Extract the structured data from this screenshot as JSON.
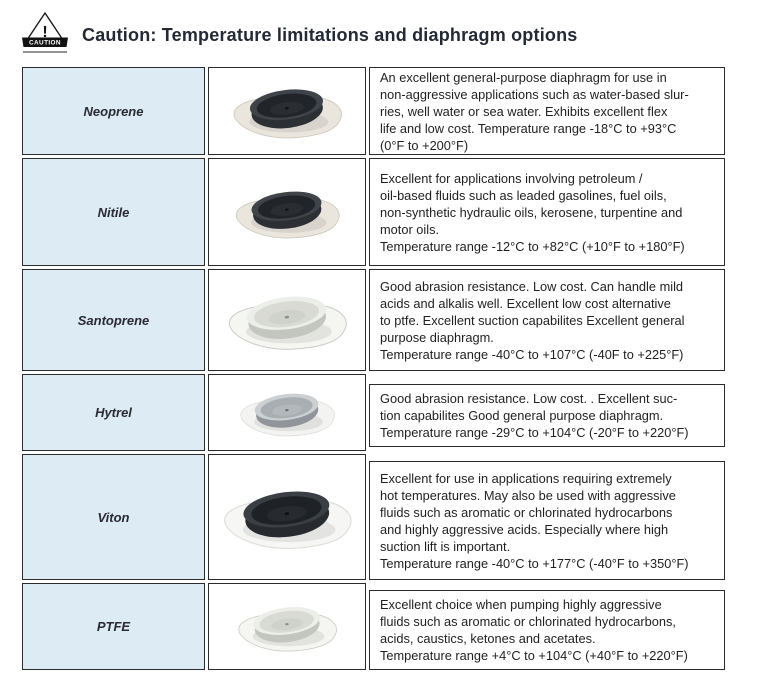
{
  "header": {
    "title": "Caution: Temperature limitations and diaphragm options",
    "caution_icon": {
      "exclamation": "!",
      "label": "CAUTION"
    }
  },
  "colors": {
    "name_cell_bg": "#dcebf4",
    "cell_border": "#2b2b2b",
    "body_text": "#1f1f1f",
    "title_text": "#242936"
  },
  "table": {
    "rows": [
      {
        "name": "Neoprene",
        "image_variant": "dark",
        "image_scale": 1.0,
        "lines": [
          "An excellent general-purpose diaphragm for use in",
          "non-aggressive applications such as water-based slur-",
          "ries, well water or sea water. Exhibits excellent flex",
          "life and low cost. Temperature range -18°C to +93°C",
          "(0°F to +200°F)"
        ]
      },
      {
        "name": "Nitile",
        "image_variant": "dark",
        "image_scale": 0.88,
        "lines": [
          "Excellent for applications involving petroleum /",
          "oil-based fluids such as leaded gasolines, fuel oils,",
          "non-synthetic hydraulic oils, kerosene, turpentine and",
          "motor oils.",
          "Temperature range -12°C to +82°C (+10°F to +180°F)"
        ]
      },
      {
        "name": "Santoprene",
        "image_variant": "white",
        "image_scale": 1.0,
        "lines": [
          "Good abrasion resistance. Low cost. Can handle mild",
          "acids and alkalis well. Excellent low cost alternative",
          "to ptfe. Excellent suction capabilites Excellent general",
          "purpose diaphragm.",
          "Temperature range -40°C to +107°C (-40F to +225°F)"
        ]
      },
      {
        "name": "Hytrel",
        "image_variant": "silver",
        "image_scale": 1.0,
        "lines": [
          "Good abrasion resistance. Low cost. . Excellent suc-",
          "tion capabilites Good general purpose diaphragm.",
          "Temperature range -29°C to +104°C (-20°F to +220°F)"
        ]
      },
      {
        "name": "Viton",
        "image_variant": "darkPlate",
        "image_scale": 1.08,
        "lines": [
          "Excellent for use in applications requiring extremely",
          "hot temperatures. May also be used with aggressive",
          "fluids such as aromatic or chlorinated hydrocarbons",
          "and highly aggressive acids. Especially where high",
          "suction lift is important.",
          "Temperature range -40°C to +177°C (-40°F to +350°F)"
        ]
      },
      {
        "name": "PTFE",
        "image_variant": "white",
        "image_scale": 0.92,
        "lines": [
          "Excellent choice when pumping highly aggressive",
          "fluids such as aromatic or chlorinated hydrocarbons,",
          "acids, caustics, ketones and acetates.",
          "Temperature range +4°C to +104°C (+40°F to +220°F)"
        ]
      }
    ]
  },
  "image_variants": {
    "dark": {
      "sheet": "#eae5dd",
      "sheetStroke": "#cfc8bc",
      "rim": "#3f444a",
      "body": "#2c3035",
      "inner": "#212428",
      "disc": "#2a2e33",
      "dot": "#0f1113"
    },
    "darkPlate": {
      "sheet": "#f6f6f4",
      "sheetStroke": "#dcdcd8",
      "rim": "#3a3f45",
      "body": "#272b30",
      "inner": "#1e2125",
      "disc": "#272b30",
      "dot": "#0f1113"
    },
    "white": {
      "sheet": "#f5f5f2",
      "sheetStroke": "#ccccc5",
      "rim": "#eceee9",
      "body": "#c3c6bf",
      "inner": "#d8dad3",
      "disc": "#cfd2ca",
      "dot": "#8a8d86"
    },
    "silver": {
      "sheet": "#f3f3f1",
      "sheetStroke": "#dddddb",
      "rim": "#ccd0d3",
      "body": "#8f959a",
      "inner": "#a9aeb3",
      "disc": "#b3b8bc",
      "dot": "#5f6468"
    }
  }
}
